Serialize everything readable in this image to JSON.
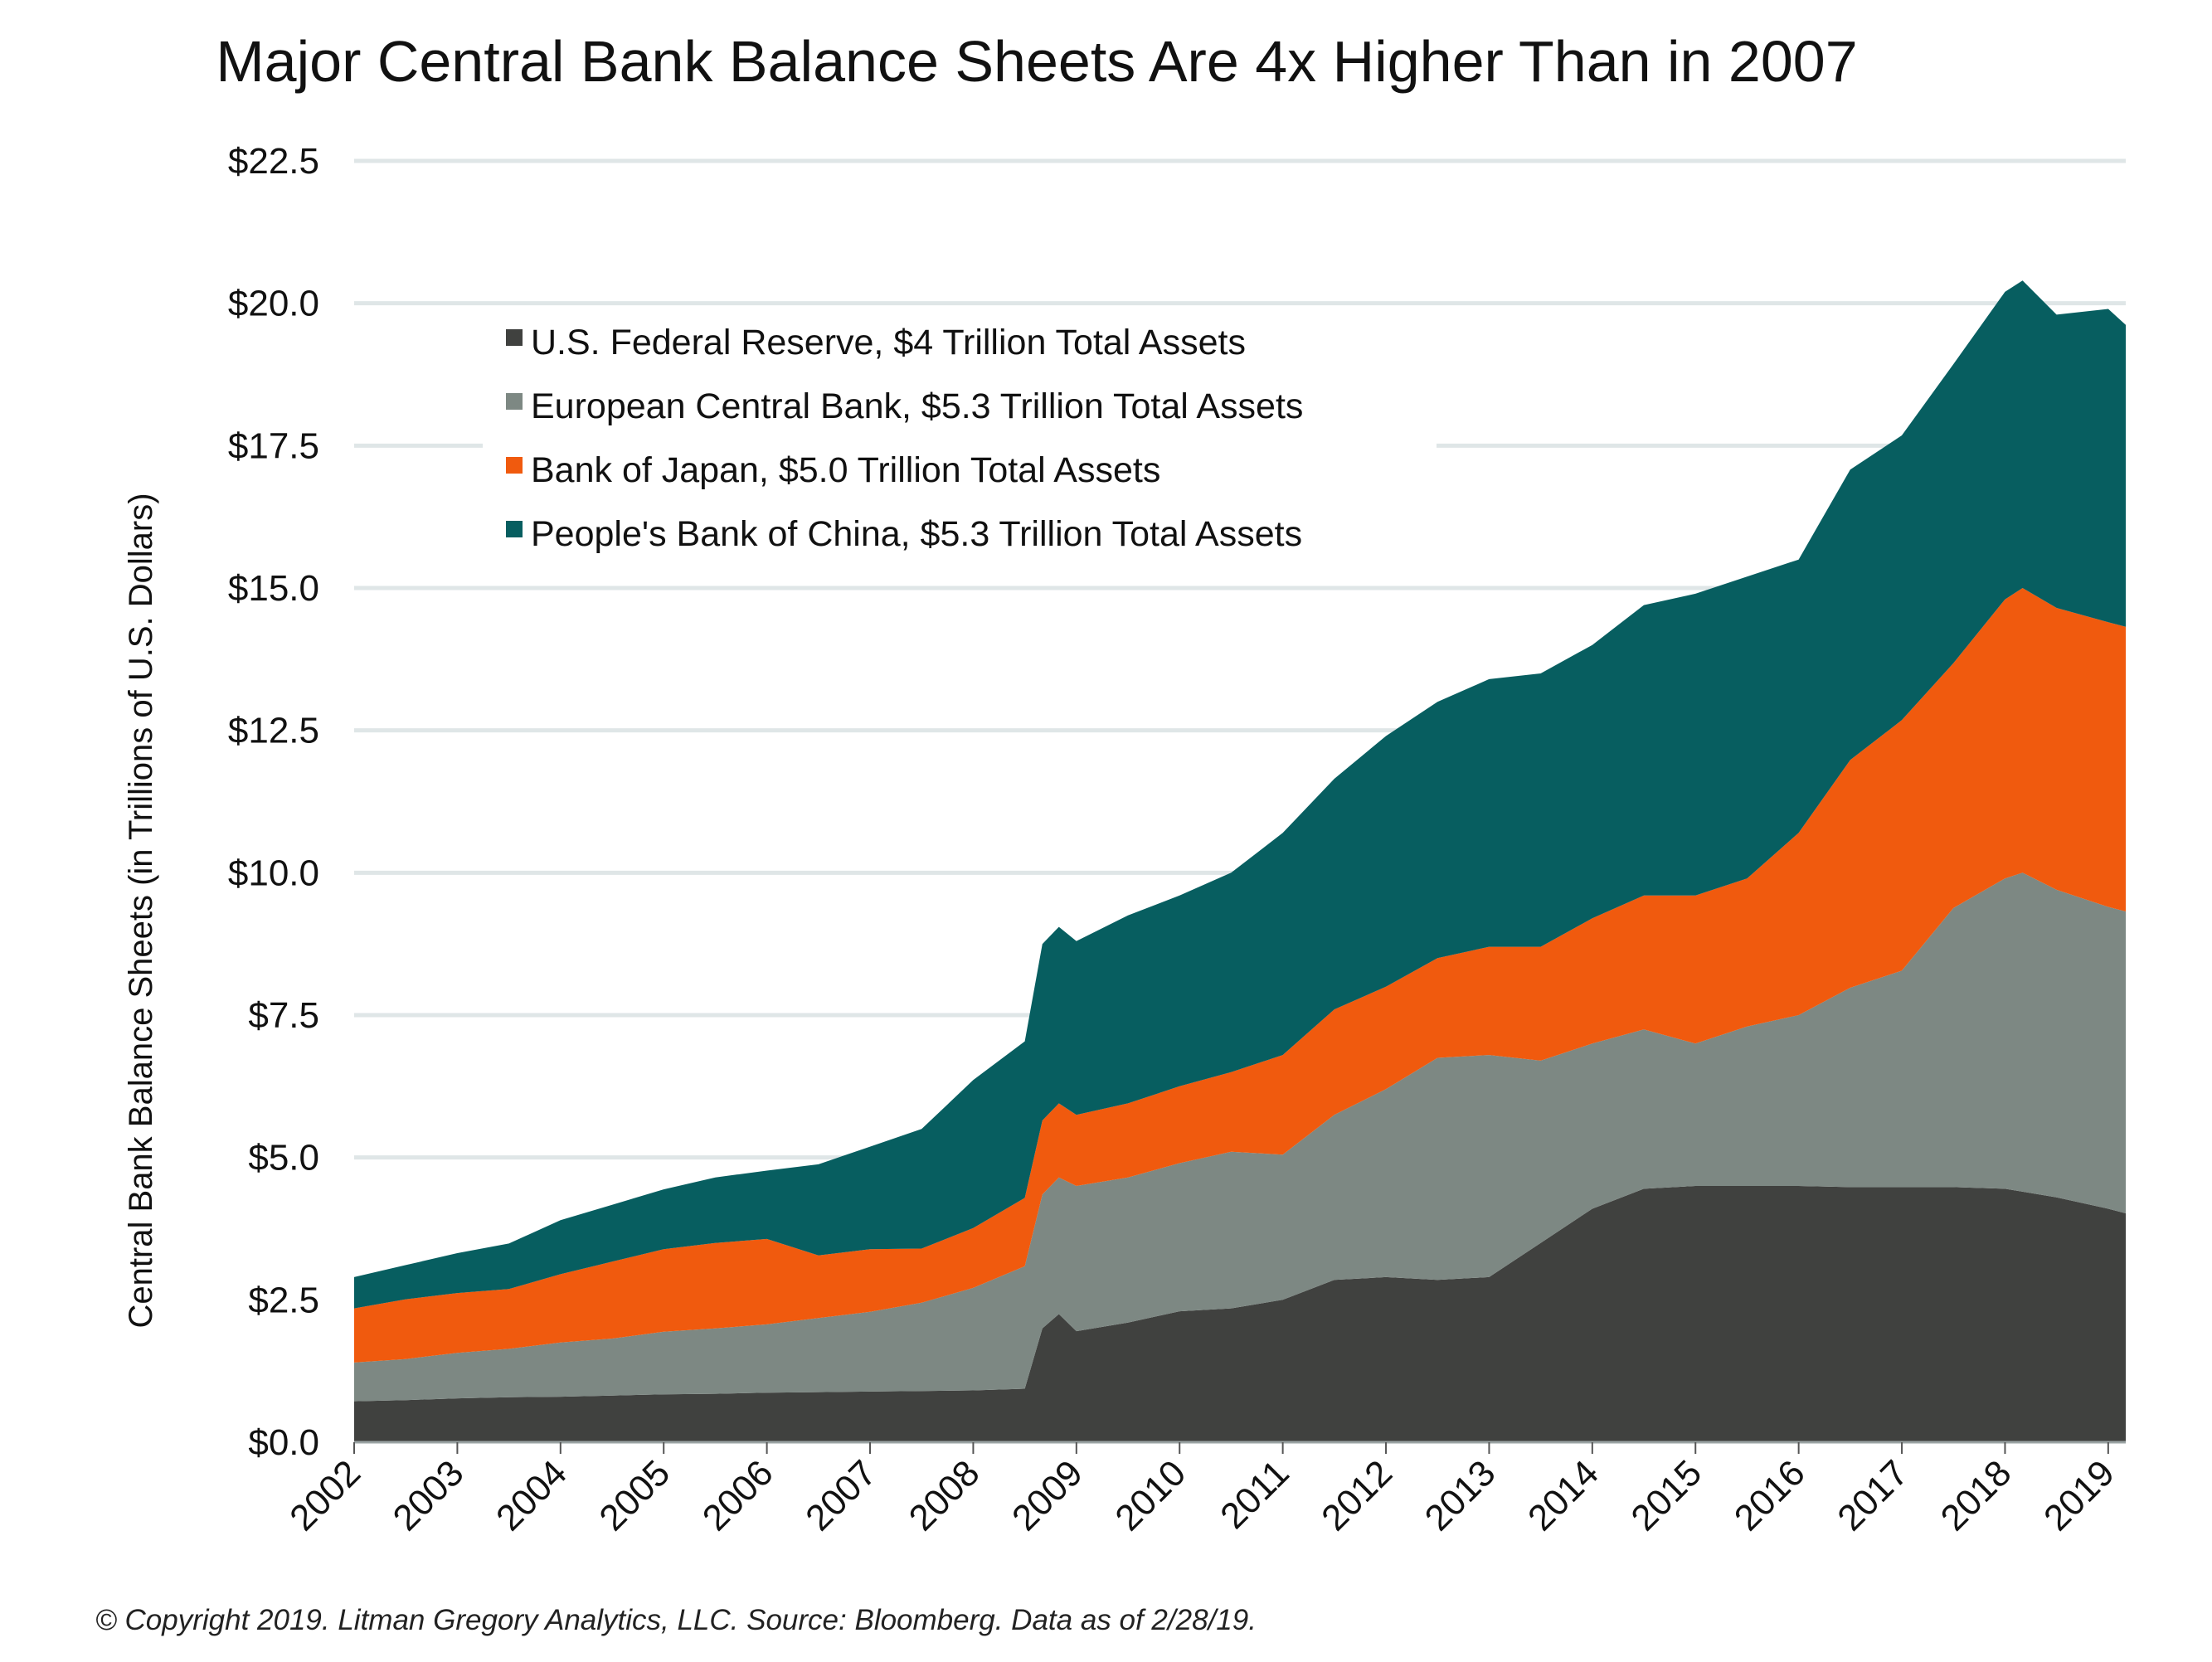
{
  "title": "Major Central Bank Balance Sheets Are 4x Higher Than in 2007",
  "footnote": "© Copyright 2019. Litman Gregory Analytics, LLC. Source: Bloomberg. Data as of 2/28/19.",
  "chart_data": {
    "type": "area",
    "stacked": true,
    "title": "Major Central Bank Balance Sheets Are 4x Higher Than in 2007",
    "xlabel": "",
    "ylabel": "Central Bank Balance Sheets (in Trillions of U.S. Dollars)",
    "ylim": [
      0,
      22.5
    ],
    "xlim": [
      2002,
      2019.17
    ],
    "grid": true,
    "legend_position": "top-left",
    "y_ticks": [
      "$0.0",
      "$2.5",
      "$5.0",
      "$7.5",
      "$10.0",
      "$12.5",
      "$15.0",
      "$17.5",
      "$20.0",
      "$22.5"
    ],
    "x_ticks": [
      "2002",
      "2003",
      "2004",
      "2005",
      "2006",
      "2007",
      "2008",
      "2009",
      "2010",
      "2011",
      "2012",
      "2013",
      "2014",
      "2015",
      "2016",
      "2017",
      "2018",
      "2019"
    ],
    "x": [
      2002.0,
      2002.5,
      2003.0,
      2003.5,
      2004.0,
      2004.5,
      2005.0,
      2005.5,
      2006.0,
      2006.5,
      2007.0,
      2007.5,
      2008.0,
      2008.5,
      2008.67,
      2008.83,
      2009.0,
      2009.5,
      2010.0,
      2010.5,
      2011.0,
      2011.5,
      2012.0,
      2012.5,
      2013.0,
      2013.5,
      2014.0,
      2014.5,
      2015.0,
      2015.5,
      2016.0,
      2016.5,
      2017.0,
      2017.5,
      2018.0,
      2018.17,
      2018.5,
      2019.0,
      2019.17
    ],
    "series": [
      {
        "name": "U.S. Federal Reserve, $4 Trillion Total Assets",
        "color": "#40413f",
        "values": [
          0.72,
          0.74,
          0.77,
          0.79,
          0.8,
          0.82,
          0.84,
          0.85,
          0.87,
          0.88,
          0.89,
          0.9,
          0.91,
          0.94,
          2.0,
          2.25,
          1.95,
          2.1,
          2.3,
          2.35,
          2.5,
          2.85,
          2.9,
          2.85,
          2.9,
          3.5,
          4.1,
          4.45,
          4.5,
          4.5,
          4.5,
          4.48,
          4.48,
          4.48,
          4.45,
          4.4,
          4.3,
          4.1,
          4.02
        ]
      },
      {
        "name": "European Central Bank, $5.3 Trillion Total Assets",
        "color": "#7d8883",
        "values": [
          0.68,
          0.72,
          0.8,
          0.85,
          0.95,
          1.0,
          1.1,
          1.15,
          1.2,
          1.3,
          1.4,
          1.55,
          1.8,
          2.15,
          2.35,
          2.4,
          2.55,
          2.55,
          2.6,
          2.75,
          2.55,
          2.9,
          3.3,
          3.9,
          3.9,
          3.2,
          2.9,
          2.8,
          2.5,
          2.8,
          3.0,
          3.5,
          3.8,
          4.9,
          5.45,
          5.6,
          5.4,
          5.3,
          5.3
        ]
      },
      {
        "name": "Bank of Japan, $5.0 Trillion Total Assets",
        "color": "#f05a0e",
        "values": [
          0.95,
          1.05,
          1.05,
          1.05,
          1.2,
          1.35,
          1.45,
          1.5,
          1.5,
          1.1,
          1.1,
          0.95,
          1.05,
          1.2,
          1.3,
          1.3,
          1.25,
          1.3,
          1.35,
          1.4,
          1.75,
          1.85,
          1.8,
          1.75,
          1.9,
          2.0,
          2.2,
          2.35,
          2.6,
          2.6,
          3.2,
          4.0,
          4.4,
          4.3,
          4.9,
          5.0,
          4.95,
          5.0,
          5.0
        ]
      },
      {
        "name": "People's Bank of China, $5.3 Trillion Total Assets",
        "color": "#075e60",
        "values": [
          0.55,
          0.6,
          0.7,
          0.8,
          0.95,
          1.0,
          1.05,
          1.15,
          1.2,
          1.6,
          1.8,
          2.1,
          2.6,
          2.75,
          3.1,
          3.1,
          3.05,
          3.3,
          3.35,
          3.5,
          3.9,
          4.05,
          4.4,
          4.5,
          4.7,
          4.8,
          4.8,
          5.1,
          5.3,
          5.3,
          4.8,
          5.1,
          5.0,
          5.25,
          5.4,
          5.4,
          5.15,
          5.5,
          5.3
        ]
      }
    ]
  }
}
